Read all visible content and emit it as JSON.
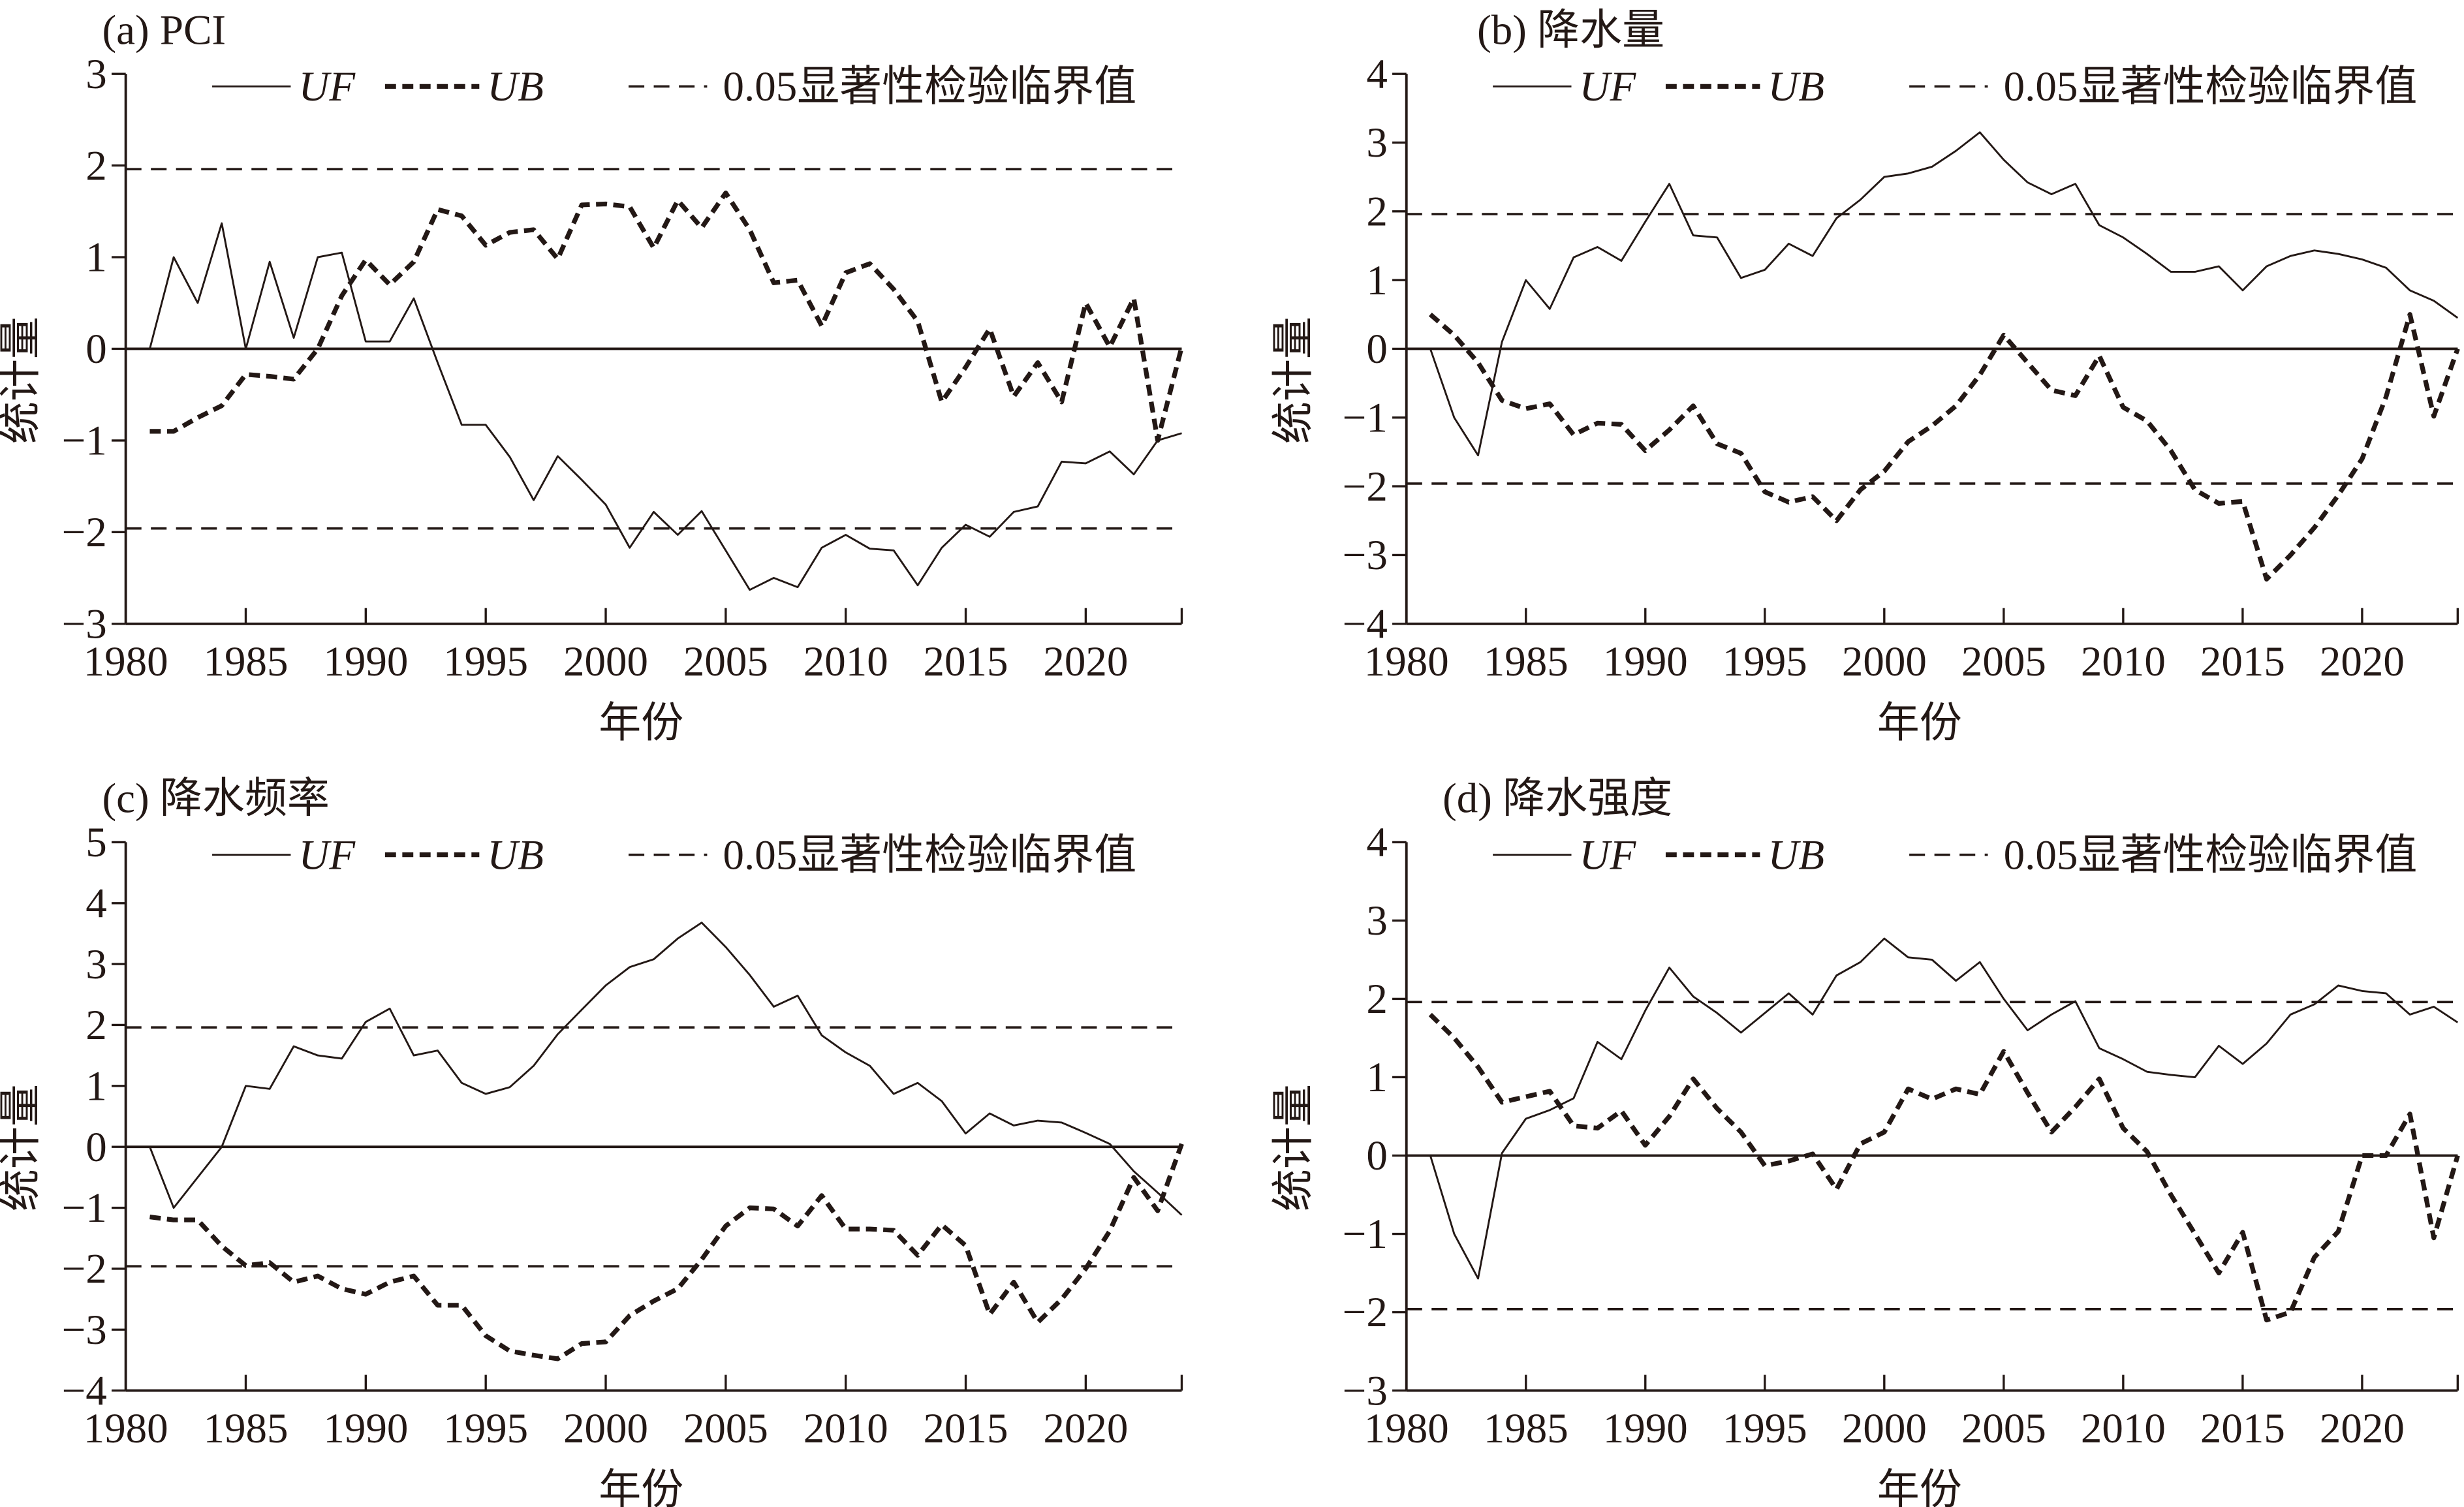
{
  "chart_data": [
    {
      "type": "line",
      "title": "(a) PCI",
      "xlabel": "年份",
      "ylabel": "统计量",
      "xlim": [
        1980,
        2024
      ],
      "ylim": [
        -3,
        3
      ],
      "xticks": [
        1980,
        1985,
        1990,
        1995,
        2000,
        2005,
        2010,
        2015,
        2020
      ],
      "xtick_labels": [
        "1980",
        "1985",
        "1990",
        "1995",
        "2000",
        "2005",
        "2010",
        "2015",
        "2020"
      ],
      "yticks": [
        -3,
        -2,
        -1,
        0,
        1,
        2,
        3
      ],
      "ytick_labels": [
        "−3",
        "−2",
        "−1",
        "0",
        "1",
        "2",
        "3"
      ],
      "critical": 1.96,
      "legend": {
        "uf": "UF",
        "ub": "UB",
        "crit": "0.05显著性检验临界值",
        "position": "top"
      },
      "x": [
        1981,
        1982,
        1983,
        1984,
        1985,
        1986,
        1987,
        1988,
        1989,
        1990,
        1991,
        1992,
        1993,
        1994,
        1995,
        1996,
        1997,
        1998,
        1999,
        2000,
        2001,
        2002,
        2003,
        2004,
        2005,
        2006,
        2007,
        2008,
        2009,
        2010,
        2011,
        2012,
        2013,
        2014,
        2015,
        2016,
        2017,
        2018,
        2019,
        2020,
        2021,
        2022,
        2023,
        2024
      ],
      "series": [
        {
          "name": "UF",
          "values": [
            0,
            1.0,
            0.5,
            1.37,
            0,
            0.95,
            0.12,
            1.0,
            1.05,
            0.08,
            0.08,
            0.55,
            -0.15,
            -0.83,
            -0.83,
            -1.18,
            -1.65,
            -1.17,
            -1.43,
            -1.7,
            -2.17,
            -1.78,
            -2.03,
            -1.77,
            -2.2,
            -2.63,
            -2.5,
            -2.6,
            -2.17,
            -2.03,
            -2.18,
            -2.2,
            -2.58,
            -2.17,
            -1.92,
            -2.05,
            -1.78,
            -1.72,
            -1.23,
            -1.25,
            -1.12,
            -1.37,
            -1.0,
            -0.92
          ]
        },
        {
          "name": "UB",
          "values": [
            -0.9,
            -0.9,
            -0.75,
            -0.62,
            -0.28,
            -0.3,
            -0.33,
            0,
            0.58,
            0.97,
            0.7,
            0.95,
            1.52,
            1.45,
            1.13,
            1.27,
            1.3,
            0.98,
            1.57,
            1.58,
            1.55,
            1.1,
            1.62,
            1.32,
            1.7,
            1.3,
            0.72,
            0.75,
            0.25,
            0.83,
            0.93,
            0.65,
            0.3,
            -0.58,
            -0.2,
            0.22,
            -0.52,
            -0.15,
            -0.58,
            0.5,
            0.02,
            0.55,
            -1.0,
            0.02
          ]
        }
      ]
    },
    {
      "type": "line",
      "title": "(b) 降水量",
      "xlabel": "年份",
      "ylabel": "统计量",
      "xlim": [
        1980,
        2024
      ],
      "ylim": [
        -4,
        4
      ],
      "xticks": [
        1980,
        1985,
        1990,
        1995,
        2000,
        2005,
        2010,
        2015,
        2020
      ],
      "xtick_labels": [
        "1980",
        "1985",
        "1990",
        "1995",
        "2000",
        "2005",
        "2010",
        "2015",
        "2020"
      ],
      "yticks": [
        -4,
        -3,
        -2,
        -1,
        0,
        1,
        2,
        3,
        4
      ],
      "ytick_labels": [
        "−4",
        "−3",
        "−2",
        "−1",
        "0",
        "1",
        "2",
        "3",
        "4"
      ],
      "critical": 1.96,
      "legend": {
        "uf": "UF",
        "ub": "UB",
        "crit": "0.05显著性检验临界值",
        "position": "top"
      },
      "x": [
        1981,
        1982,
        1983,
        1984,
        1985,
        1986,
        1987,
        1988,
        1989,
        1990,
        1991,
        1992,
        1993,
        1994,
        1995,
        1996,
        1997,
        1998,
        1999,
        2000,
        2001,
        2002,
        2003,
        2004,
        2005,
        2006,
        2007,
        2008,
        2009,
        2010,
        2011,
        2012,
        2013,
        2014,
        2015,
        2016,
        2017,
        2018,
        2019,
        2020,
        2021,
        2022,
        2023,
        2024
      ],
      "series": [
        {
          "name": "UF",
          "values": [
            0,
            -1.0,
            -1.55,
            0.1,
            1.0,
            0.58,
            1.33,
            1.48,
            1.28,
            1.85,
            2.4,
            1.65,
            1.62,
            1.03,
            1.15,
            1.53,
            1.35,
            1.9,
            2.17,
            2.5,
            2.55,
            2.65,
            2.88,
            3.15,
            2.75,
            2.42,
            2.25,
            2.4,
            1.8,
            1.62,
            1.38,
            1.12,
            1.12,
            1.2,
            0.85,
            1.2,
            1.35,
            1.43,
            1.38,
            1.3,
            1.18,
            0.85,
            0.7,
            0.45
          ]
        },
        {
          "name": "UB",
          "values": [
            0.5,
            0.2,
            -0.2,
            -0.75,
            -0.87,
            -0.8,
            -1.25,
            -1.08,
            -1.1,
            -1.48,
            -1.18,
            -0.83,
            -1.38,
            -1.52,
            -2.08,
            -2.23,
            -2.15,
            -2.5,
            -2.05,
            -1.78,
            -1.35,
            -1.12,
            -0.83,
            -0.38,
            0.2,
            -0.2,
            -0.6,
            -0.68,
            -0.1,
            -0.85,
            -1.05,
            -1.48,
            -2.05,
            -2.25,
            -2.22,
            -3.35,
            -3.0,
            -2.6,
            -2.13,
            -1.6,
            -0.7,
            0.5,
            -0.98,
            0
          ]
        }
      ]
    },
    {
      "type": "line",
      "title": "(c) 降水频率",
      "xlabel": "年份",
      "ylabel": "统计量",
      "xlim": [
        1980,
        2024
      ],
      "ylim": [
        -4,
        5
      ],
      "xticks": [
        1980,
        1985,
        1990,
        1995,
        2000,
        2005,
        2010,
        2015,
        2020
      ],
      "xtick_labels": [
        "1980",
        "1985",
        "1990",
        "1995",
        "2000",
        "2005",
        "2010",
        "2015",
        "2020"
      ],
      "yticks": [
        -4,
        -3,
        -2,
        -1,
        0,
        1,
        2,
        3,
        4,
        5
      ],
      "ytick_labels": [
        "−4",
        "−3",
        "−2",
        "−1",
        "0",
        "1",
        "2",
        "3",
        "4",
        "5"
      ],
      "critical": 1.96,
      "legend": {
        "uf": "UF",
        "ub": "UB",
        "crit": "0.05显著性检验临界值",
        "position": "top"
      },
      "x": [
        1981,
        1982,
        1983,
        1984,
        1985,
        1986,
        1987,
        1988,
        1989,
        1990,
        1991,
        1992,
        1993,
        1994,
        1995,
        1996,
        1997,
        1998,
        1999,
        2000,
        2001,
        2002,
        2003,
        2004,
        2005,
        2006,
        2007,
        2008,
        2009,
        2010,
        2011,
        2012,
        2013,
        2014,
        2015,
        2016,
        2017,
        2018,
        2019,
        2020,
        2021,
        2022,
        2023,
        2024
      ],
      "series": [
        {
          "name": "UF",
          "values": [
            0,
            -1.0,
            -0.5,
            0,
            1.0,
            0.95,
            1.65,
            1.5,
            1.45,
            2.05,
            2.27,
            1.5,
            1.58,
            1.05,
            0.87,
            0.98,
            1.33,
            1.85,
            2.25,
            2.65,
            2.95,
            3.08,
            3.42,
            3.68,
            3.28,
            2.82,
            2.3,
            2.48,
            1.83,
            1.55,
            1.33,
            0.87,
            1.05,
            0.75,
            0.22,
            0.55,
            0.35,
            0.43,
            0.4,
            0.23,
            0.05,
            -0.4,
            -0.75,
            -1.12
          ]
        },
        {
          "name": "UB",
          "values": [
            -1.15,
            -1.2,
            -1.2,
            -1.63,
            -1.95,
            -1.9,
            -2.22,
            -2.12,
            -2.33,
            -2.42,
            -2.22,
            -2.12,
            -2.6,
            -2.6,
            -3.1,
            -3.35,
            -3.42,
            -3.48,
            -3.23,
            -3.2,
            -2.77,
            -2.53,
            -2.33,
            -1.85,
            -1.3,
            -1.0,
            -1.02,
            -1.3,
            -0.8,
            -1.35,
            -1.35,
            -1.37,
            -1.78,
            -1.28,
            -1.62,
            -2.75,
            -2.22,
            -2.88,
            -2.5,
            -2.0,
            -1.38,
            -0.5,
            -1.05,
            0.05
          ]
        }
      ]
    },
    {
      "type": "line",
      "title": "(d) 降水强度",
      "xlabel": "年份",
      "ylabel": "统计量",
      "xlim": [
        1980,
        2024
      ],
      "ylim": [
        -3,
        4
      ],
      "xticks": [
        1980,
        1985,
        1990,
        1995,
        2000,
        2005,
        2010,
        2015,
        2020
      ],
      "xtick_labels": [
        "1980",
        "1985",
        "1990",
        "1995",
        "2000",
        "2005",
        "2010",
        "2015",
        "2020"
      ],
      "yticks": [
        -3,
        -2,
        -1,
        0,
        1,
        2,
        3,
        4
      ],
      "ytick_labels": [
        "−3",
        "−2",
        "−1",
        "0",
        "1",
        "2",
        "3",
        "4"
      ],
      "critical": 1.96,
      "legend": {
        "uf": "UF",
        "ub": "UB",
        "crit": "0.05显著性检验临界值",
        "position": "top"
      },
      "x": [
        1981,
        1982,
        1983,
        1984,
        1985,
        1986,
        1987,
        1988,
        1989,
        1990,
        1991,
        1992,
        1993,
        1994,
        1995,
        1996,
        1997,
        1998,
        1999,
        2000,
        2001,
        2002,
        2003,
        2004,
        2005,
        2006,
        2007,
        2008,
        2009,
        2010,
        2011,
        2012,
        2013,
        2014,
        2015,
        2016,
        2017,
        2018,
        2019,
        2020,
        2021,
        2022,
        2023,
        2024
      ],
      "series": [
        {
          "name": "UF",
          "values": [
            0,
            -1.0,
            -1.57,
            0.03,
            0.47,
            0.58,
            0.73,
            1.45,
            1.23,
            1.85,
            2.4,
            2.03,
            1.82,
            1.57,
            1.82,
            2.07,
            1.8,
            2.3,
            2.47,
            2.77,
            2.53,
            2.5,
            2.23,
            2.47,
            2.0,
            1.6,
            1.8,
            1.97,
            1.37,
            1.23,
            1.07,
            1.03,
            1.0,
            1.4,
            1.17,
            1.43,
            1.8,
            1.93,
            2.17,
            2.1,
            2.07,
            1.8,
            1.9,
            1.7
          ]
        },
        {
          "name": "UB",
          "values": [
            1.8,
            1.5,
            1.13,
            0.68,
            0.75,
            0.82,
            0.38,
            0.35,
            0.57,
            0.13,
            0.5,
            0.98,
            0.6,
            0.3,
            -0.13,
            -0.07,
            0.02,
            -0.43,
            0.15,
            0.3,
            0.85,
            0.72,
            0.85,
            0.78,
            1.33,
            0.8,
            0.3,
            0.62,
            0.98,
            0.35,
            0.05,
            -0.5,
            -1.0,
            -1.5,
            -0.98,
            -2.1,
            -2.0,
            -1.3,
            -0.97,
            0,
            0,
            0.53,
            -1.05,
            0
          ]
        }
      ]
    }
  ]
}
